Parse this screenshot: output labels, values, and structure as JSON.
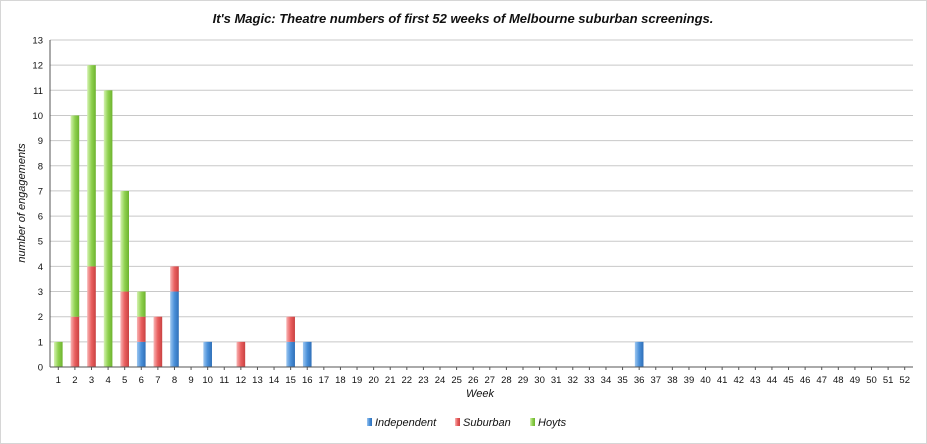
{
  "chart_data": {
    "type": "bar",
    "stacked": true,
    "title": "It's Magic: Theatre numbers of first 52 weeks of Melbourne suburban screenings.",
    "xlabel": "Week",
    "ylabel": "number of engagements",
    "ylim": [
      0,
      13
    ],
    "yticks": [
      0,
      1,
      2,
      3,
      4,
      5,
      6,
      7,
      8,
      9,
      10,
      11,
      12,
      13
    ],
    "grid": true,
    "legend_position": "bottom",
    "categories": [
      "1",
      "2",
      "3",
      "4",
      "5",
      "6",
      "7",
      "8",
      "9",
      "10",
      "11",
      "12",
      "13",
      "14",
      "15",
      "16",
      "17",
      "18",
      "19",
      "20",
      "21",
      "22",
      "23",
      "24",
      "25",
      "26",
      "27",
      "28",
      "29",
      "30",
      "31",
      "32",
      "33",
      "34",
      "35",
      "36",
      "37",
      "38",
      "39",
      "40",
      "41",
      "42",
      "43",
      "44",
      "45",
      "46",
      "47",
      "48",
      "49",
      "50",
      "51",
      "52"
    ],
    "series": [
      {
        "name": "Independent",
        "color": "#4a90d9",
        "values": [
          0,
          0,
          0,
          0,
          0,
          1,
          0,
          3,
          0,
          1,
          0,
          0,
          0,
          0,
          1,
          1,
          0,
          0,
          0,
          0,
          0,
          0,
          0,
          0,
          0,
          0,
          0,
          0,
          0,
          0,
          0,
          0,
          0,
          0,
          0,
          1,
          0,
          0,
          0,
          0,
          0,
          0,
          0,
          0,
          0,
          0,
          0,
          0,
          0,
          0,
          0,
          0
        ]
      },
      {
        "name": "Suburban",
        "color": "#e95f5f",
        "values": [
          0,
          2,
          4,
          0,
          3,
          1,
          2,
          1,
          0,
          0,
          0,
          1,
          0,
          0,
          1,
          0,
          0,
          0,
          0,
          0,
          0,
          0,
          0,
          0,
          0,
          0,
          0,
          0,
          0,
          0,
          0,
          0,
          0,
          0,
          0,
          0,
          0,
          0,
          0,
          0,
          0,
          0,
          0,
          0,
          0,
          0,
          0,
          0,
          0,
          0,
          0,
          0
        ]
      },
      {
        "name": "Hoyts",
        "color": "#8fd14f",
        "values": [
          1,
          8,
          8,
          11,
          4,
          1,
          0,
          0,
          0,
          0,
          0,
          0,
          0,
          0,
          0,
          0,
          0,
          0,
          0,
          0,
          0,
          0,
          0,
          0,
          0,
          0,
          0,
          0,
          0,
          0,
          0,
          0,
          0,
          0,
          0,
          0,
          0,
          0,
          0,
          0,
          0,
          0,
          0,
          0,
          0,
          0,
          0,
          0,
          0,
          0,
          0,
          0
        ]
      }
    ]
  }
}
